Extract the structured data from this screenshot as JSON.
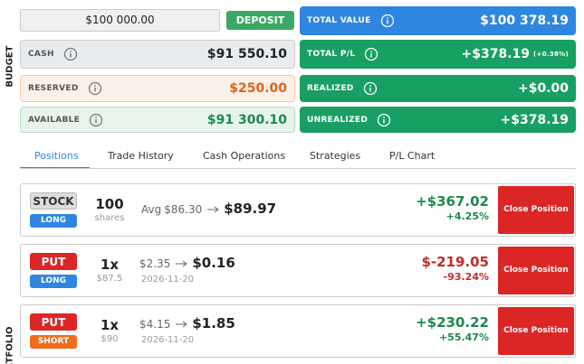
{
  "budget": {
    "label": "BUDGET",
    "amount_input": "$100 000.00",
    "deposit_button": "DEPOSIT",
    "rows": [
      {
        "label": "CASH",
        "value": "$91 550.10",
        "tone": "neutral"
      },
      {
        "label": "RESERVED",
        "value": "$250.00",
        "tone": "warn"
      },
      {
        "label": "AVAILABLE",
        "value": "$91 300.10",
        "tone": "gain"
      }
    ],
    "summary": [
      {
        "label": "TOTAL VALUE",
        "value": "$100 378.19",
        "color": "#2f86e0"
      },
      {
        "label": "TOTAL P/L",
        "value": "+$378.19",
        "note": "(+0.38%)",
        "color": "#17a062"
      },
      {
        "label": "REALIZED",
        "value": "+$0.00",
        "color": "#17a062"
      },
      {
        "label": "UNREALIZED",
        "value": "+$378.19",
        "color": "#17a062"
      }
    ]
  },
  "tabs": {
    "items": [
      "Positions",
      "Trade History",
      "Cash Operations",
      "Strategies",
      "P/L Chart"
    ],
    "active": 0
  },
  "portfolio": {
    "label": "RTFOLIO",
    "positions": [
      {
        "type": "STOCK",
        "side": "LONG",
        "qty": "100",
        "qty_sub": "shares",
        "prefix": "Avg",
        "entry": "$86.30",
        "current": "$89.97",
        "pnl": "+$367.02",
        "pnl_pct": "+4.25%",
        "tone": "gain",
        "action": "Close Position"
      },
      {
        "type": "PUT",
        "side": "LONG",
        "qty": "1x",
        "qty_sub": "$87.5",
        "entry": "$2.35",
        "current": "$0.16",
        "date": "2026-11-20",
        "pnl": "$-219.05",
        "pnl_pct": "-93.24%",
        "tone": "loss",
        "action": "Close Position"
      },
      {
        "type": "PUT",
        "side": "SHORT",
        "qty": "1x",
        "qty_sub": "$90",
        "entry": "$4.15",
        "current": "$1.85",
        "date": "2026-11-20",
        "pnl": "+$230.22",
        "pnl_pct": "+55.47%",
        "tone": "gain",
        "action": "Close Position"
      }
    ]
  }
}
